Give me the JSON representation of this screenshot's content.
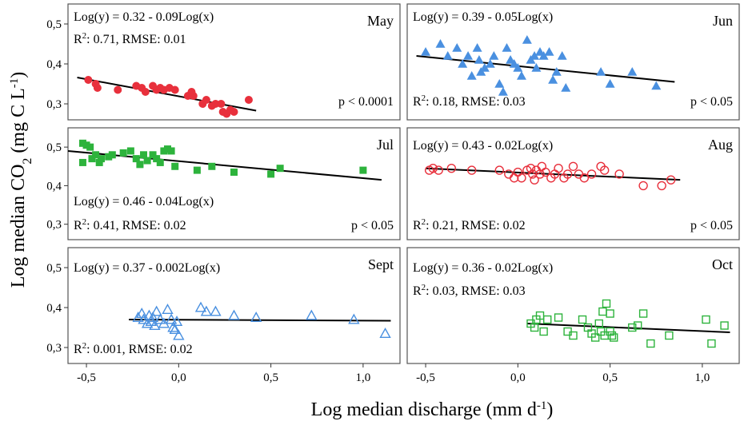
{
  "chart_data": {
    "type": "scatter",
    "ylabel_main": "Log median CO",
    "ylabel_sub": "2",
    "ylabel_unit_pre": " (mg C L",
    "ylabel_unit_sup": "-1",
    "ylabel_unit_post": ")",
    "xlabel_main": "Log median discharge (mm d",
    "xlabel_sup": "-1",
    "xlabel_post": ")",
    "xlim": [
      -0.6,
      1.2
    ],
    "ylim": [
      0.26,
      0.55
    ],
    "xticks": [
      -0.5,
      0.0,
      0.5,
      1.0
    ],
    "xtick_labels": [
      "-0,5",
      "0,0",
      "0,5",
      "1,0"
    ],
    "yticks": [
      0.3,
      0.4,
      0.5
    ],
    "ytick_labels": [
      "0,3",
      "0,4",
      "0,5"
    ],
    "panels": [
      {
        "month": "May",
        "color": "#e8303c",
        "marker": "circle",
        "filled": true,
        "equation": "Log(y) = 0.32 - 0.09Log(x)",
        "r2_pre": "R",
        "r2_sup": "2",
        "r2_post": ": 0.71, RMSE: 0.01",
        "pvalue": "p < 0.0001",
        "fit": [
          [
            -0.55,
            0.366
          ],
          [
            0.42,
            0.283
          ]
        ],
        "points": [
          [
            -0.49,
            0.36
          ],
          [
            -0.45,
            0.35
          ],
          [
            -0.44,
            0.34
          ],
          [
            -0.33,
            0.335
          ],
          [
            -0.23,
            0.345
          ],
          [
            -0.2,
            0.34
          ],
          [
            -0.18,
            0.33
          ],
          [
            -0.14,
            0.345
          ],
          [
            -0.12,
            0.335
          ],
          [
            -0.1,
            0.34
          ],
          [
            -0.08,
            0.335
          ],
          [
            -0.05,
            0.34
          ],
          [
            -0.02,
            0.335
          ],
          [
            0.05,
            0.32
          ],
          [
            0.07,
            0.33
          ],
          [
            0.08,
            0.32
          ],
          [
            0.13,
            0.3
          ],
          [
            0.15,
            0.31
          ],
          [
            0.18,
            0.295
          ],
          [
            0.2,
            0.3
          ],
          [
            0.23,
            0.3
          ],
          [
            0.24,
            0.28
          ],
          [
            0.26,
            0.275
          ],
          [
            0.28,
            0.285
          ],
          [
            0.3,
            0.28
          ],
          [
            0.38,
            0.31
          ]
        ]
      },
      {
        "month": "Jun",
        "color": "#4a90e0",
        "marker": "triangle",
        "filled": true,
        "equation": "Log(y) = 0.39 - 0.05Log(x)",
        "r2_pre": "R",
        "r2_sup": "2",
        "r2_post": ": 0.18, RMSE: 0.03",
        "pvalue": "p < 0.05",
        "fit": [
          [
            -0.55,
            0.42
          ],
          [
            0.85,
            0.355
          ]
        ],
        "points": [
          [
            -0.5,
            0.43
          ],
          [
            -0.42,
            0.45
          ],
          [
            -0.38,
            0.42
          ],
          [
            -0.33,
            0.44
          ],
          [
            -0.3,
            0.4
          ],
          [
            -0.27,
            0.42
          ],
          [
            -0.25,
            0.37
          ],
          [
            -0.22,
            0.44
          ],
          [
            -0.21,
            0.41
          ],
          [
            -0.2,
            0.38
          ],
          [
            -0.18,
            0.39
          ],
          [
            -0.15,
            0.4
          ],
          [
            -0.13,
            0.42
          ],
          [
            -0.1,
            0.35
          ],
          [
            -0.08,
            0.33
          ],
          [
            -0.06,
            0.44
          ],
          [
            -0.04,
            0.41
          ],
          [
            -0.02,
            0.4
          ],
          [
            0.0,
            0.39
          ],
          [
            0.02,
            0.37
          ],
          [
            0.05,
            0.46
          ],
          [
            0.07,
            0.41
          ],
          [
            0.09,
            0.42
          ],
          [
            0.1,
            0.39
          ],
          [
            0.12,
            0.43
          ],
          [
            0.14,
            0.42
          ],
          [
            0.17,
            0.43
          ],
          [
            0.19,
            0.36
          ],
          [
            0.21,
            0.38
          ],
          [
            0.24,
            0.42
          ],
          [
            0.26,
            0.34
          ],
          [
            0.45,
            0.38
          ],
          [
            0.5,
            0.35
          ],
          [
            0.62,
            0.38
          ],
          [
            0.75,
            0.345
          ]
        ]
      },
      {
        "month": "Jul",
        "color": "#2db33c",
        "marker": "square",
        "filled": true,
        "equation": "Log(y) = 0.46 - 0.04Log(x)",
        "r2_pre": "R",
        "r2_sup": "2",
        "r2_post": ": 0.41, RMSE: 0.02",
        "pvalue": "p < 0.05",
        "fit": [
          [
            -0.6,
            0.49
          ],
          [
            1.1,
            0.415
          ]
        ],
        "points": [
          [
            -0.52,
            0.46
          ],
          [
            -0.52,
            0.51
          ],
          [
            -0.5,
            0.505
          ],
          [
            -0.48,
            0.5
          ],
          [
            -0.47,
            0.47
          ],
          [
            -0.45,
            0.48
          ],
          [
            -0.43,
            0.46
          ],
          [
            -0.42,
            0.47
          ],
          [
            -0.38,
            0.475
          ],
          [
            -0.36,
            0.48
          ],
          [
            -0.3,
            0.485
          ],
          [
            -0.26,
            0.49
          ],
          [
            -0.23,
            0.47
          ],
          [
            -0.21,
            0.455
          ],
          [
            -0.19,
            0.48
          ],
          [
            -0.17,
            0.465
          ],
          [
            -0.14,
            0.48
          ],
          [
            -0.12,
            0.47
          ],
          [
            -0.1,
            0.46
          ],
          [
            -0.08,
            0.49
          ],
          [
            -0.06,
            0.495
          ],
          [
            -0.04,
            0.49
          ],
          [
            -0.02,
            0.45
          ],
          [
            0.1,
            0.44
          ],
          [
            0.18,
            0.45
          ],
          [
            0.3,
            0.435
          ],
          [
            0.5,
            0.43
          ],
          [
            0.55,
            0.445
          ],
          [
            1.0,
            0.44
          ]
        ]
      },
      {
        "month": "Aug",
        "color": "#e8303c",
        "marker": "circle",
        "filled": false,
        "equation": "Log(y) = 0.43 - 0.02Log(x)",
        "r2_pre": "R",
        "r2_sup": "2",
        "r2_post": ": 0.21, RMSE: 0.02",
        "pvalue": "p < 0.05",
        "fit": [
          [
            -0.5,
            0.445
          ],
          [
            0.88,
            0.415
          ]
        ],
        "points": [
          [
            -0.48,
            0.44
          ],
          [
            -0.46,
            0.445
          ],
          [
            -0.43,
            0.44
          ],
          [
            -0.36,
            0.445
          ],
          [
            -0.25,
            0.44
          ],
          [
            -0.1,
            0.44
          ],
          [
            -0.05,
            0.43
          ],
          [
            -0.02,
            0.42
          ],
          [
            0.0,
            0.435
          ],
          [
            0.02,
            0.42
          ],
          [
            0.05,
            0.44
          ],
          [
            0.07,
            0.445
          ],
          [
            0.08,
            0.43
          ],
          [
            0.09,
            0.415
          ],
          [
            0.1,
            0.44
          ],
          [
            0.12,
            0.43
          ],
          [
            0.13,
            0.45
          ],
          [
            0.15,
            0.435
          ],
          [
            0.18,
            0.42
          ],
          [
            0.2,
            0.43
          ],
          [
            0.22,
            0.445
          ],
          [
            0.25,
            0.42
          ],
          [
            0.27,
            0.43
          ],
          [
            0.3,
            0.45
          ],
          [
            0.33,
            0.43
          ],
          [
            0.36,
            0.42
          ],
          [
            0.4,
            0.43
          ],
          [
            0.45,
            0.45
          ],
          [
            0.47,
            0.44
          ],
          [
            0.55,
            0.43
          ],
          [
            0.68,
            0.4
          ],
          [
            0.78,
            0.4
          ],
          [
            0.83,
            0.415
          ]
        ]
      },
      {
        "month": "Sept",
        "color": "#4a90e0",
        "marker": "triangle",
        "filled": false,
        "equation": "Log(y) = 0.37 - 0.002Log(x)",
        "r2_pre": "R",
        "r2_sup": "2",
        "r2_post": ": 0.001, RMSE: 0.02",
        "pvalue": "",
        "fit": [
          [
            -0.27,
            0.37
          ],
          [
            1.15,
            0.367
          ]
        ],
        "points": [
          [
            -0.22,
            0.375
          ],
          [
            -0.2,
            0.385
          ],
          [
            -0.19,
            0.37
          ],
          [
            -0.17,
            0.36
          ],
          [
            -0.16,
            0.38
          ],
          [
            -0.15,
            0.365
          ],
          [
            -0.14,
            0.375
          ],
          [
            -0.13,
            0.355
          ],
          [
            -0.12,
            0.39
          ],
          [
            -0.1,
            0.37
          ],
          [
            -0.08,
            0.36
          ],
          [
            -0.06,
            0.395
          ],
          [
            -0.04,
            0.37
          ],
          [
            -0.03,
            0.35
          ],
          [
            -0.02,
            0.345
          ],
          [
            -0.01,
            0.365
          ],
          [
            0.0,
            0.33
          ],
          [
            0.12,
            0.4
          ],
          [
            0.15,
            0.39
          ],
          [
            0.2,
            0.39
          ],
          [
            0.3,
            0.38
          ],
          [
            0.42,
            0.375
          ],
          [
            0.72,
            0.38
          ],
          [
            0.95,
            0.37
          ],
          [
            1.12,
            0.335
          ]
        ]
      },
      {
        "month": "Oct",
        "color": "#2db33c",
        "marker": "square",
        "filled": false,
        "equation": "Log(y) = 0.36 - 0.02Log(x)",
        "r2_pre": "R",
        "r2_sup": "2",
        "r2_post": ": 0.03, RMSE: 0.03",
        "pvalue": "",
        "fit": [
          [
            0.05,
            0.36
          ],
          [
            1.15,
            0.338
          ]
        ],
        "points": [
          [
            0.07,
            0.36
          ],
          [
            0.09,
            0.35
          ],
          [
            0.1,
            0.37
          ],
          [
            0.12,
            0.38
          ],
          [
            0.14,
            0.34
          ],
          [
            0.16,
            0.37
          ],
          [
            0.22,
            0.375
          ],
          [
            0.27,
            0.34
          ],
          [
            0.3,
            0.33
          ],
          [
            0.35,
            0.37
          ],
          [
            0.38,
            0.35
          ],
          [
            0.4,
            0.335
          ],
          [
            0.42,
            0.325
          ],
          [
            0.44,
            0.36
          ],
          [
            0.45,
            0.34
          ],
          [
            0.46,
            0.39
          ],
          [
            0.47,
            0.33
          ],
          [
            0.48,
            0.41
          ],
          [
            0.5,
            0.34
          ],
          [
            0.5,
            0.385
          ],
          [
            0.51,
            0.33
          ],
          [
            0.52,
            0.325
          ],
          [
            0.62,
            0.35
          ],
          [
            0.65,
            0.355
          ],
          [
            0.68,
            0.385
          ],
          [
            0.72,
            0.31
          ],
          [
            0.82,
            0.33
          ],
          [
            1.02,
            0.37
          ],
          [
            1.05,
            0.31
          ],
          [
            1.12,
            0.355
          ]
        ]
      }
    ]
  }
}
